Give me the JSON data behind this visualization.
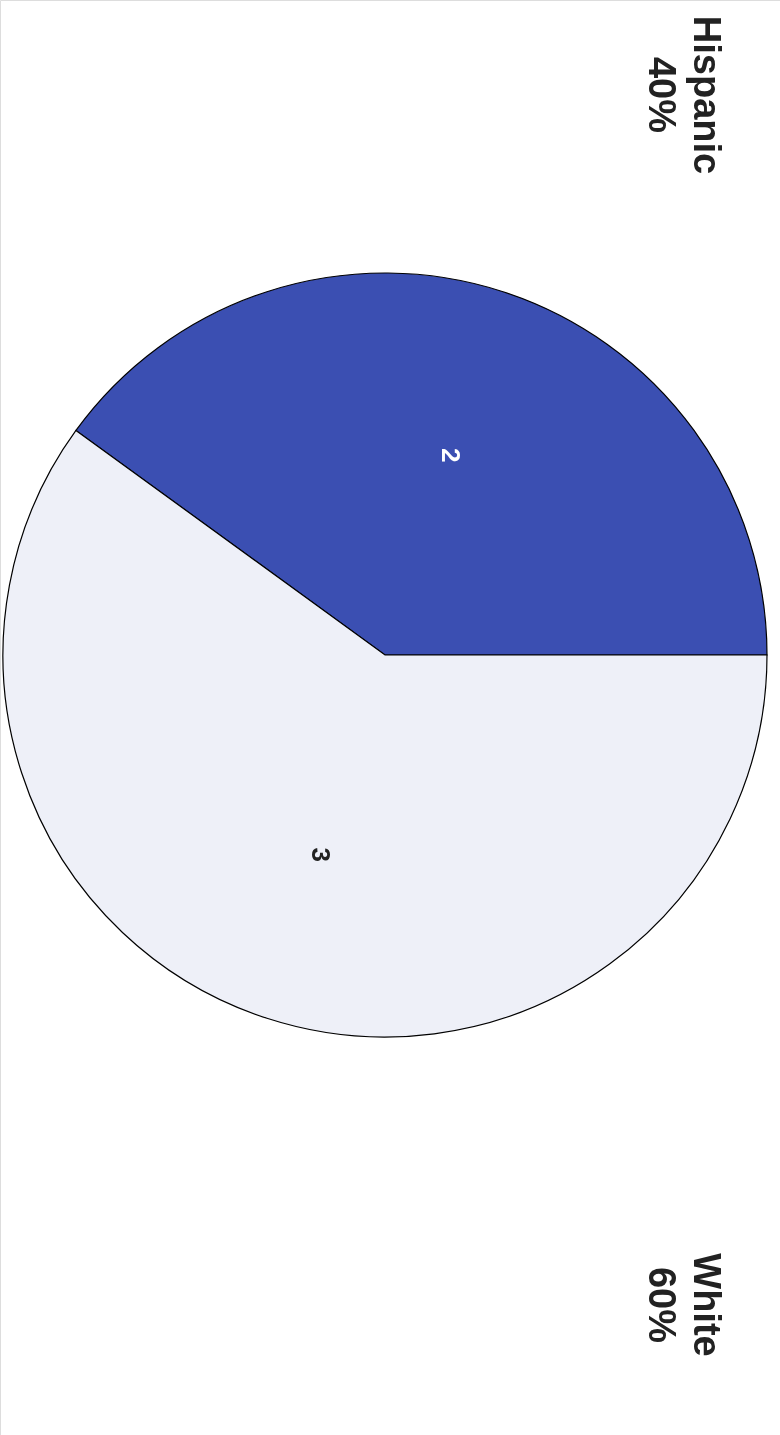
{
  "chart_data": {
    "type": "pie",
    "categories": [
      "Hispanic",
      "White"
    ],
    "values": [
      2,
      3
    ],
    "colors": [
      "#3b4fb2",
      "#eef0f8"
    ],
    "data_labels": true,
    "annotations": [
      "40%",
      "60%"
    ]
  }
}
